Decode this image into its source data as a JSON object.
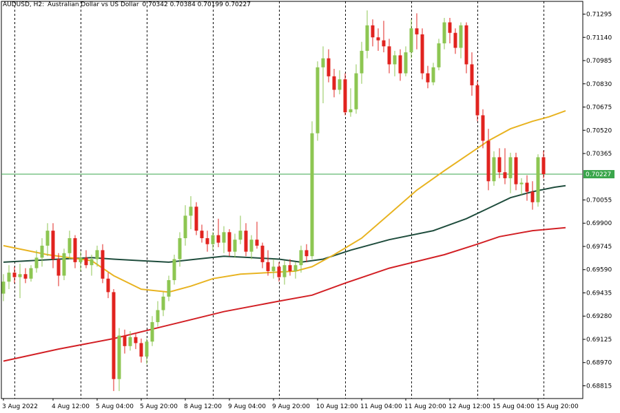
{
  "header": {
    "symbol": "AUDUSD, H2:",
    "description": "Australian Dollar vs US Dollar",
    "ohlc": "0.70342 0.70384 0.70199 0.70227"
  },
  "colors": {
    "background": "#ffffff",
    "bull": "#8dc652",
    "bear": "#e1231f",
    "grid": "#000000",
    "axis": "#000000",
    "ma_fast": "#e8b320",
    "ma_mid": "#1e4c3c",
    "ma_slow": "#d21f24",
    "current_price_line": "#3aa64b"
  },
  "chart_data": {
    "type": "candlestick",
    "symbol": "AUDUSD",
    "timeframe": "H2",
    "ylim": [
      0.6873,
      0.7138
    ],
    "yticks": [
      "0.71295",
      "0.71140",
      "0.70985",
      "0.70830",
      "0.70675",
      "0.70520",
      "0.70365",
      "0.70055",
      "0.69900",
      "0.69745",
      "0.69590",
      "0.69435",
      "0.69280",
      "0.69125",
      "0.68970",
      "0.68815"
    ],
    "xticks": [
      {
        "label": "3 Aug 2022",
        "bar": 0
      },
      {
        "label": "4 Aug 12:00",
        "bar": 9
      },
      {
        "label": "5 Aug 04:00",
        "bar": 17
      },
      {
        "label": "5 Aug 20:00",
        "bar": 25
      },
      {
        "label": "8 Aug 12:00",
        "bar": 33
      },
      {
        "label": "9 Aug 04:00",
        "bar": 41
      },
      {
        "label": "9 Aug 20:00",
        "bar": 49
      },
      {
        "label": "10 Aug 12:00",
        "bar": 57
      },
      {
        "label": "11 Aug 04:00",
        "bar": 65
      },
      {
        "label": "11 Aug 20:00",
        "bar": 73
      },
      {
        "label": "12 Aug 12:00",
        "bar": 81
      },
      {
        "label": "15 Aug 04:00",
        "bar": 89
      },
      {
        "label": "15 Aug 20:00",
        "bar": 97
      }
    ],
    "vgrid_bars": [
      2,
      14,
      26,
      38,
      50,
      62,
      74,
      86,
      98
    ],
    "current_price": 0.70227,
    "current_price_label": "0.70227",
    "candles": [
      [
        0.6943,
        0.6956,
        0.6938,
        0.6951
      ],
      [
        0.6951,
        0.6962,
        0.6946,
        0.6957
      ],
      [
        0.6957,
        0.6961,
        0.695,
        0.6954
      ],
      [
        0.6954,
        0.6963,
        0.694,
        0.6956
      ],
      [
        0.6956,
        0.696,
        0.695,
        0.6953
      ],
      [
        0.6953,
        0.6962,
        0.6951,
        0.696
      ],
      [
        0.696,
        0.6972,
        0.6957,
        0.6967
      ],
      [
        0.6967,
        0.698,
        0.6961,
        0.6975
      ],
      [
        0.6975,
        0.699,
        0.6968,
        0.6985
      ],
      [
        0.6985,
        0.699,
        0.696,
        0.6966
      ],
      [
        0.6966,
        0.697,
        0.6948,
        0.6955
      ],
      [
        0.6955,
        0.6973,
        0.6952,
        0.697
      ],
      [
        0.697,
        0.6985,
        0.6966,
        0.698
      ],
      [
        0.698,
        0.6982,
        0.696,
        0.6964
      ],
      [
        0.6964,
        0.6971,
        0.6958,
        0.6967
      ],
      [
        0.6967,
        0.6972,
        0.696,
        0.6962
      ],
      [
        0.6962,
        0.6969,
        0.6955,
        0.6966
      ],
      [
        0.6966,
        0.6975,
        0.6961,
        0.6972
      ],
      [
        0.6972,
        0.6976,
        0.695,
        0.6953
      ],
      [
        0.6953,
        0.6957,
        0.694,
        0.6944
      ],
      [
        0.6944,
        0.6946,
        0.6878,
        0.6886
      ],
      [
        0.6886,
        0.692,
        0.6878,
        0.6915
      ],
      [
        0.6915,
        0.6919,
        0.6903,
        0.6908
      ],
      [
        0.6908,
        0.6918,
        0.6905,
        0.6914
      ],
      [
        0.6914,
        0.6917,
        0.6906,
        0.691
      ],
      [
        0.691,
        0.6913,
        0.6897,
        0.6901
      ],
      [
        0.6901,
        0.6913,
        0.6896,
        0.6911
      ],
      [
        0.6911,
        0.6928,
        0.6908,
        0.6924
      ],
      [
        0.6924,
        0.6938,
        0.6921,
        0.6932
      ],
      [
        0.6932,
        0.6944,
        0.6928,
        0.6941
      ],
      [
        0.6941,
        0.6955,
        0.6938,
        0.6952
      ],
      [
        0.6952,
        0.6969,
        0.6949,
        0.6966
      ],
      [
        0.6966,
        0.6984,
        0.6961,
        0.698
      ],
      [
        0.698,
        0.7002,
        0.6975,
        0.6995
      ],
      [
        0.6995,
        0.7008,
        0.6986,
        0.7001
      ],
      [
        0.7001,
        0.7004,
        0.6982,
        0.6985
      ],
      [
        0.6985,
        0.6989,
        0.6977,
        0.698
      ],
      [
        0.698,
        0.6985,
        0.6971,
        0.6976
      ],
      [
        0.6976,
        0.6984,
        0.6972,
        0.6982
      ],
      [
        0.6982,
        0.6993,
        0.6974,
        0.6977
      ],
      [
        0.6977,
        0.6988,
        0.697,
        0.6984
      ],
      [
        0.6984,
        0.6986,
        0.6968,
        0.6971
      ],
      [
        0.6971,
        0.6983,
        0.6967,
        0.6979
      ],
      [
        0.6979,
        0.6995,
        0.6976,
        0.6985
      ],
      [
        0.6985,
        0.699,
        0.6968,
        0.6971
      ],
      [
        0.6971,
        0.6982,
        0.6966,
        0.6979
      ],
      [
        0.6979,
        0.6991,
        0.6973,
        0.6975
      ],
      [
        0.6975,
        0.6977,
        0.696,
        0.6964
      ],
      [
        0.6964,
        0.6972,
        0.6955,
        0.6958
      ],
      [
        0.6958,
        0.6966,
        0.6953,
        0.6961
      ],
      [
        0.6961,
        0.6964,
        0.6951,
        0.6954
      ],
      [
        0.6954,
        0.6965,
        0.6949,
        0.6962
      ],
      [
        0.6962,
        0.6966,
        0.6955,
        0.6958
      ],
      [
        0.6958,
        0.6964,
        0.6953,
        0.6962
      ],
      [
        0.6962,
        0.6975,
        0.6957,
        0.6972
      ],
      [
        0.6972,
        0.6976,
        0.6964,
        0.6968
      ],
      [
        0.6968,
        0.7058,
        0.6966,
        0.705
      ],
      [
        0.705,
        0.7098,
        0.7045,
        0.7094
      ],
      [
        0.7094,
        0.7108,
        0.707,
        0.71
      ],
      [
        0.71,
        0.7106,
        0.7084,
        0.7088
      ],
      [
        0.7088,
        0.7093,
        0.7074,
        0.7079
      ],
      [
        0.7079,
        0.7092,
        0.7076,
        0.7086
      ],
      [
        0.7086,
        0.709,
        0.7062,
        0.7064
      ],
      [
        0.7064,
        0.708,
        0.7061,
        0.7066
      ],
      [
        0.7066,
        0.7096,
        0.7063,
        0.709
      ],
      [
        0.709,
        0.7111,
        0.7083,
        0.7105
      ],
      [
        0.7105,
        0.7132,
        0.71,
        0.7122
      ],
      [
        0.7122,
        0.7126,
        0.7108,
        0.7114
      ],
      [
        0.7114,
        0.712,
        0.7105,
        0.7112
      ],
      [
        0.7112,
        0.7125,
        0.7104,
        0.7108
      ],
      [
        0.7108,
        0.7113,
        0.709,
        0.7096
      ],
      [
        0.7096,
        0.7105,
        0.7088,
        0.7102
      ],
      [
        0.7102,
        0.7106,
        0.7085,
        0.709
      ],
      [
        0.709,
        0.7108,
        0.7088,
        0.7104
      ],
      [
        0.7104,
        0.7126,
        0.71,
        0.712
      ],
      [
        0.712,
        0.713,
        0.7106,
        0.7116
      ],
      [
        0.7116,
        0.712,
        0.7086,
        0.709
      ],
      [
        0.709,
        0.7095,
        0.708,
        0.7084
      ],
      [
        0.7084,
        0.7097,
        0.7082,
        0.7094
      ],
      [
        0.7094,
        0.7113,
        0.7092,
        0.711
      ],
      [
        0.711,
        0.7127,
        0.7106,
        0.7124
      ],
      [
        0.7124,
        0.7127,
        0.711,
        0.7117
      ],
      [
        0.7117,
        0.712,
        0.7103,
        0.7107
      ],
      [
        0.7107,
        0.7124,
        0.71,
        0.7122
      ],
      [
        0.7122,
        0.7124,
        0.709,
        0.7096
      ],
      [
        0.7096,
        0.7104,
        0.7075,
        0.7082
      ],
      [
        0.7082,
        0.7085,
        0.7058,
        0.7062
      ],
      [
        0.7062,
        0.7066,
        0.704,
        0.7045
      ],
      [
        0.7045,
        0.7053,
        0.7012,
        0.7018
      ],
      [
        0.7018,
        0.7038,
        0.7015,
        0.7034
      ],
      [
        0.7034,
        0.704,
        0.702,
        0.7024
      ],
      [
        0.7024,
        0.704,
        0.7016,
        0.702
      ],
      [
        0.702,
        0.7037,
        0.701,
        0.7034
      ],
      [
        0.7034,
        0.7037,
        0.7012,
        0.7016
      ],
      [
        0.7016,
        0.702,
        0.7009,
        0.7017
      ],
      [
        0.7017,
        0.7022,
        0.7005,
        0.7011
      ],
      [
        0.7011,
        0.7018,
        0.6999,
        0.7004
      ],
      [
        0.7004,
        0.7036,
        0.7001,
        0.7034
      ],
      [
        0.7034,
        0.70384,
        0.70199,
        0.70227
      ]
    ],
    "ma_fast": [
      [
        0,
        0.6975
      ],
      [
        8,
        0.6969
      ],
      [
        16,
        0.6965
      ],
      [
        20,
        0.6955
      ],
      [
        25,
        0.6946
      ],
      [
        30,
        0.6944
      ],
      [
        34,
        0.6948
      ],
      [
        38,
        0.6953
      ],
      [
        43,
        0.6956
      ],
      [
        48,
        0.6957
      ],
      [
        53,
        0.6958
      ],
      [
        56,
        0.6961
      ],
      [
        60,
        0.6969
      ],
      [
        65,
        0.698
      ],
      [
        70,
        0.6996
      ],
      [
        75,
        0.7012
      ],
      [
        80,
        0.7025
      ],
      [
        86,
        0.704
      ],
      [
        88,
        0.7045
      ],
      [
        92,
        0.7053
      ],
      [
        96,
        0.7058
      ],
      [
        99,
        0.7061
      ],
      [
        102,
        0.7065
      ]
    ],
    "ma_mid": [
      [
        0,
        0.6964
      ],
      [
        10,
        0.6966
      ],
      [
        16,
        0.6967
      ],
      [
        20,
        0.6966
      ],
      [
        25,
        0.6965
      ],
      [
        30,
        0.6964
      ],
      [
        35,
        0.6966
      ],
      [
        40,
        0.6968
      ],
      [
        45,
        0.6967
      ],
      [
        50,
        0.6966
      ],
      [
        54,
        0.6964
      ],
      [
        58,
        0.6966
      ],
      [
        63,
        0.6972
      ],
      [
        70,
        0.6979
      ],
      [
        78,
        0.6985
      ],
      [
        84,
        0.6993
      ],
      [
        88,
        0.7
      ],
      [
        92,
        0.7007
      ],
      [
        96,
        0.7011
      ],
      [
        100,
        0.7014
      ],
      [
        102,
        0.7015
      ]
    ],
    "ma_slow": [
      [
        0,
        0.6898
      ],
      [
        10,
        0.6906
      ],
      [
        20,
        0.6913
      ],
      [
        30,
        0.6922
      ],
      [
        40,
        0.6931
      ],
      [
        50,
        0.6938
      ],
      [
        56,
        0.6942
      ],
      [
        62,
        0.695
      ],
      [
        70,
        0.696
      ],
      [
        80,
        0.6969
      ],
      [
        86,
        0.6976
      ],
      [
        90,
        0.6981
      ],
      [
        96,
        0.6985
      ],
      [
        102,
        0.6987
      ]
    ]
  }
}
